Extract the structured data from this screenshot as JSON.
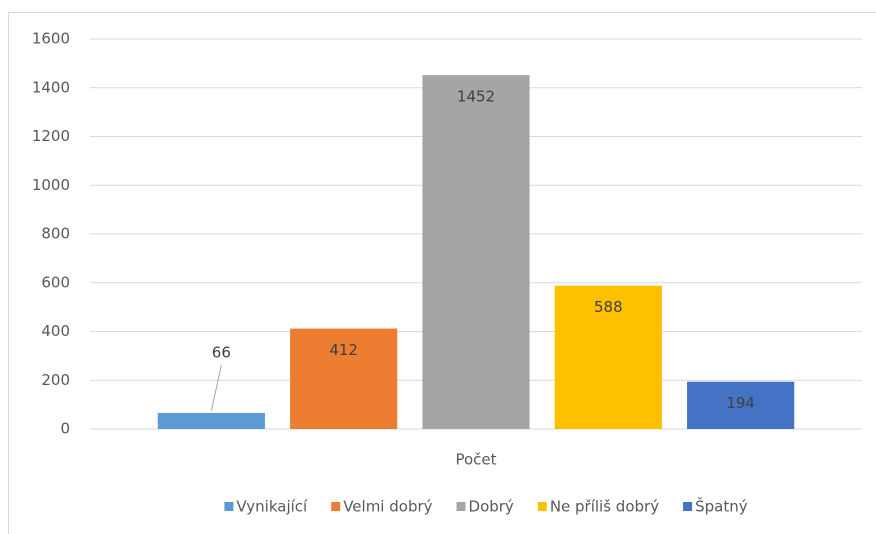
{
  "chart_data": {
    "type": "bar",
    "categories": [
      "Počet"
    ],
    "series": [
      {
        "name": "Vynikající",
        "color": "#5b9bd5",
        "values": [
          66
        ]
      },
      {
        "name": "Velmi dobrý",
        "color": "#ed7d31",
        "values": [
          412
        ]
      },
      {
        "name": "Dobrý",
        "color": "#a5a5a5",
        "values": [
          1452
        ]
      },
      {
        "name": "Ne příliš dobrý",
        "color": "#ffc000",
        "values": [
          588
        ]
      },
      {
        "name": "Špatný",
        "color": "#4472c4",
        "values": [
          194
        ]
      }
    ],
    "ylim": [
      0,
      1600
    ],
    "yticks": [
      0,
      200,
      400,
      600,
      800,
      1000,
      1200,
      1400,
      1600
    ],
    "grid": true,
    "legend": "bottom",
    "data_labels": true
  }
}
